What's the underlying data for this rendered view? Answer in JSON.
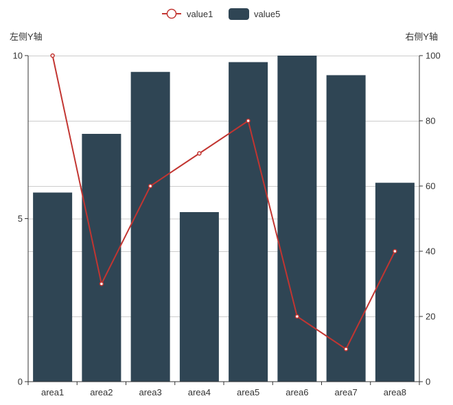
{
  "chart_data": {
    "type": "bar+line",
    "categories": [
      "area1",
      "area2",
      "area3",
      "area4",
      "area5",
      "area6",
      "area7",
      "area8"
    ],
    "series": [
      {
        "name": "value5",
        "type": "bar",
        "axis": "left",
        "color": "#2f4554",
        "values": [
          5.8,
          7.6,
          9.5,
          5.2,
          9.8,
          10,
          9.4,
          6.1
        ]
      },
      {
        "name": "value1",
        "type": "line",
        "axis": "right",
        "color": "#c23531",
        "values": [
          100,
          30,
          60,
          70,
          80,
          20,
          10,
          40
        ]
      }
    ],
    "legend": {
      "position": "top-center",
      "items": [
        "value1",
        "value5"
      ]
    },
    "y_left": {
      "name": "左侧Y轴",
      "min": 0,
      "max": 10,
      "ticks": [
        0,
        5,
        10
      ]
    },
    "y_right": {
      "name": "右侧Y轴",
      "min": 0,
      "max": 100,
      "ticks": [
        0,
        20,
        40,
        60,
        80,
        100
      ]
    },
    "grid": true
  }
}
